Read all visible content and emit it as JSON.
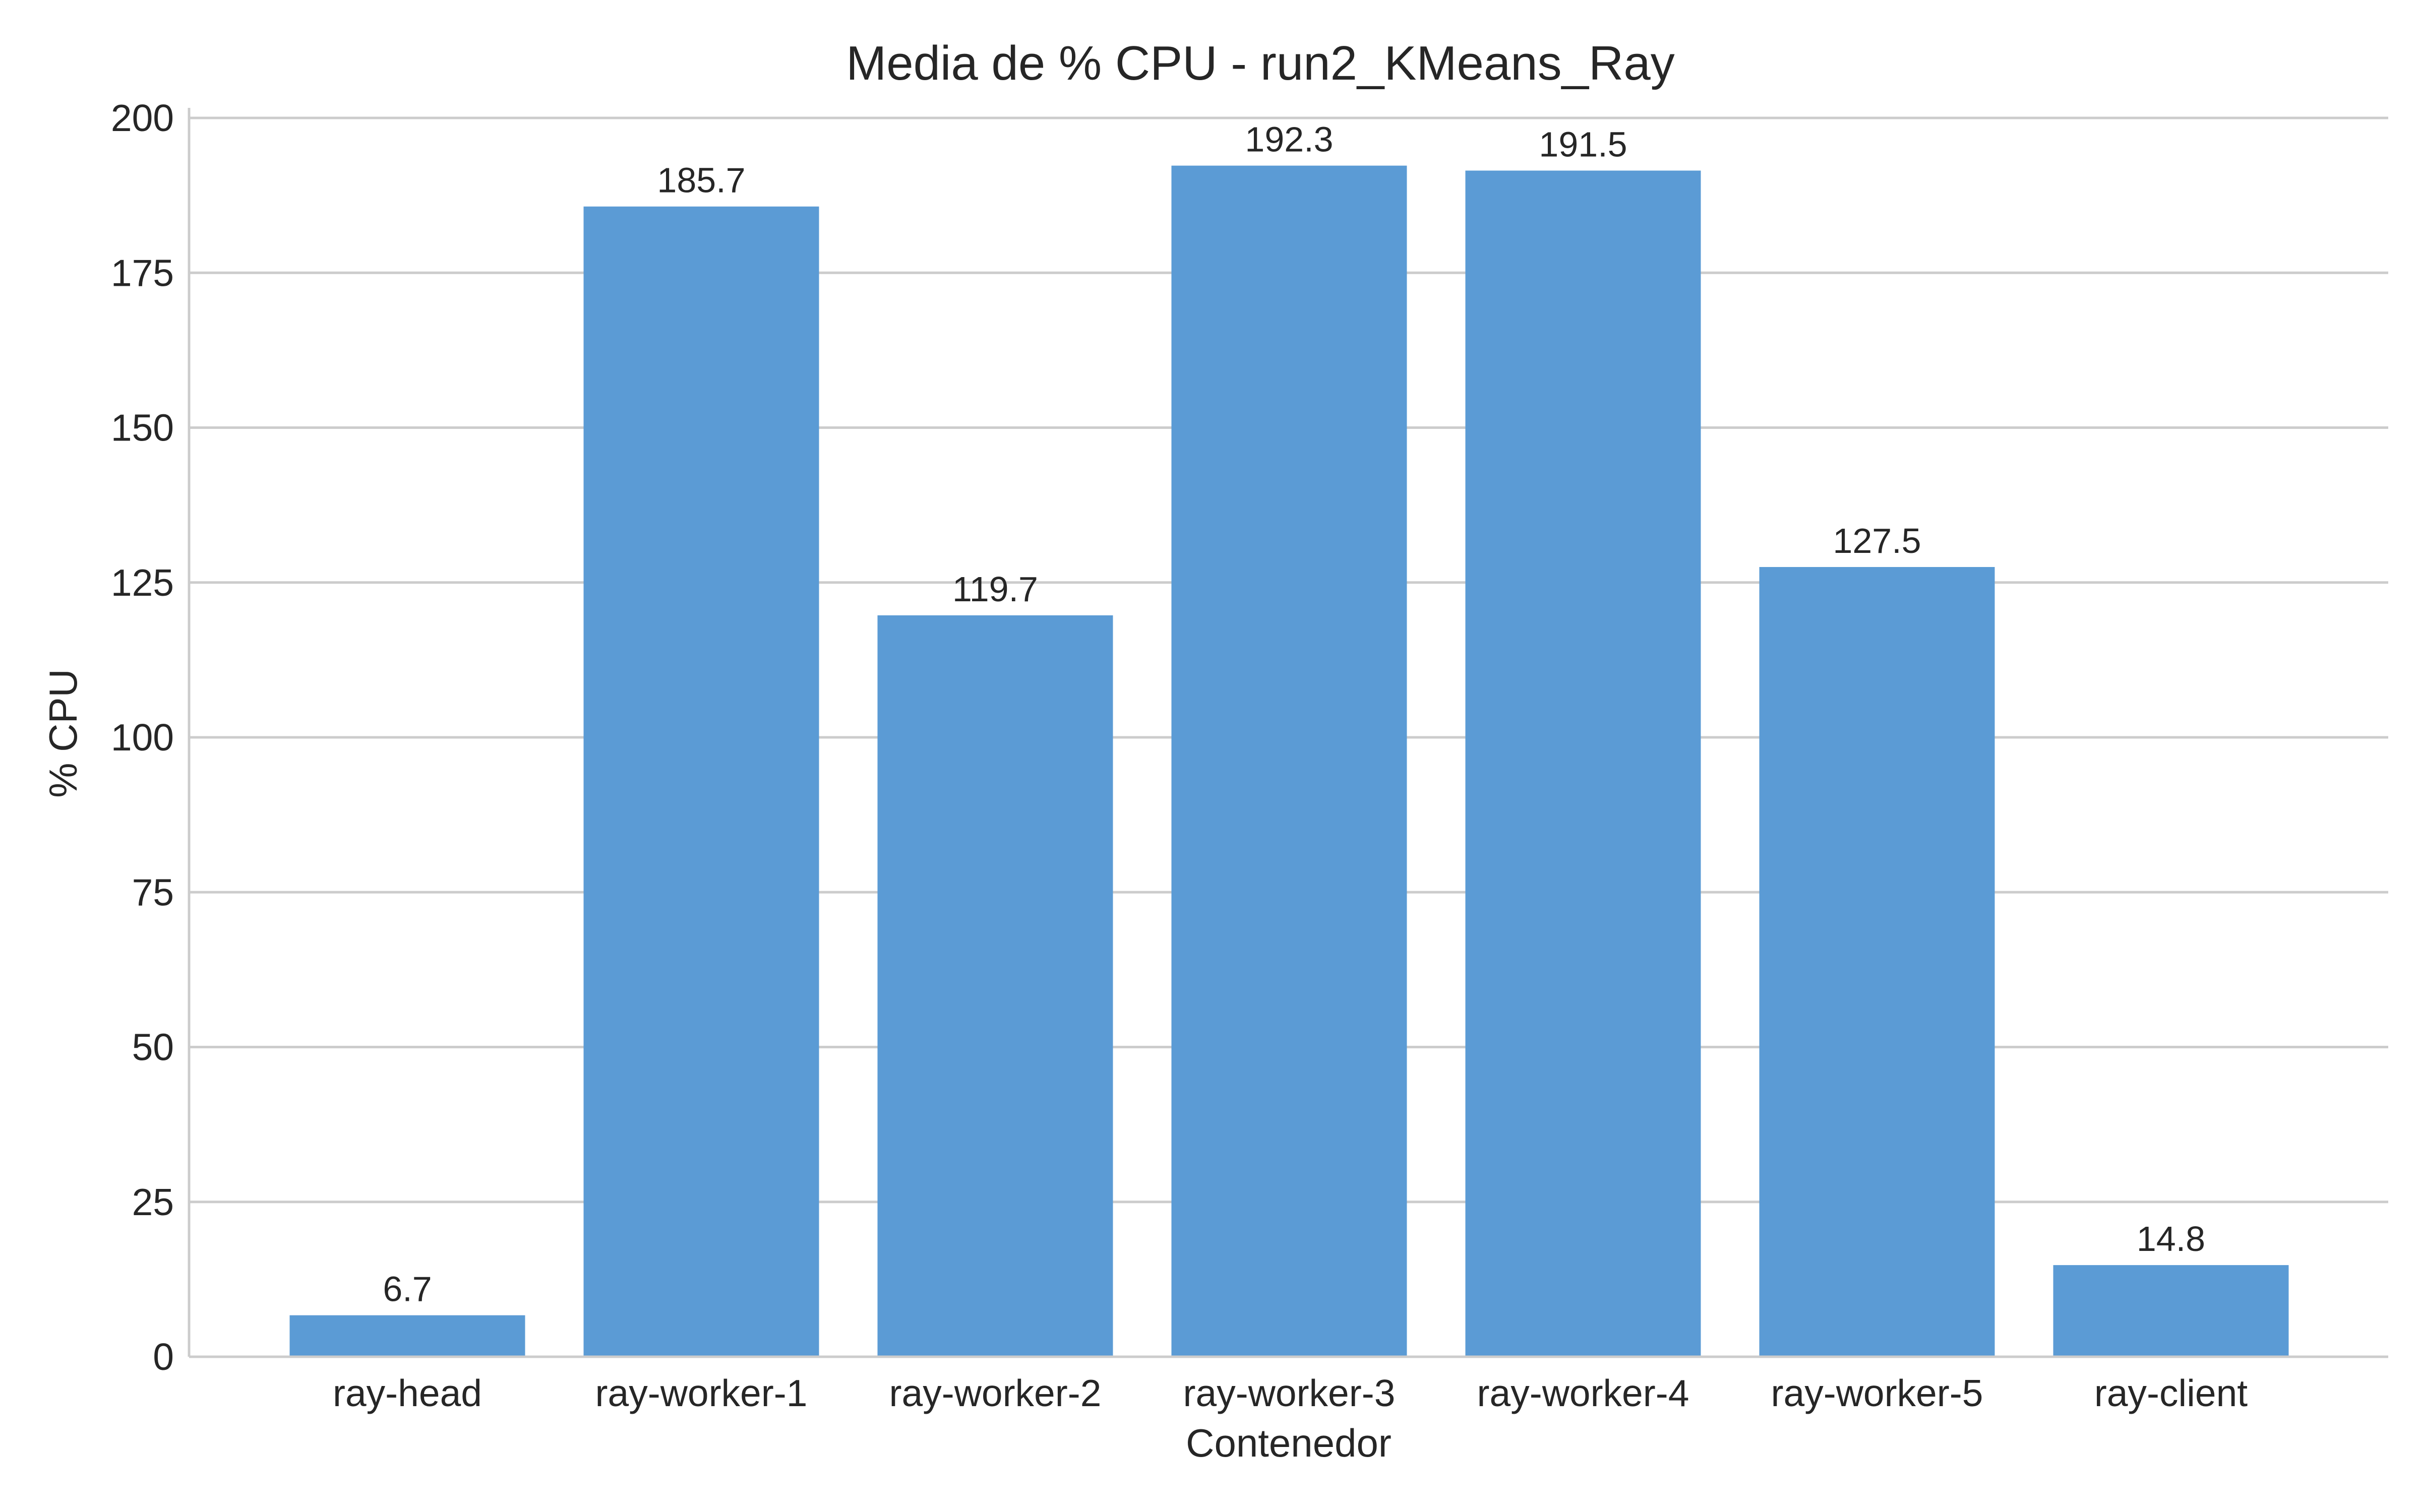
{
  "chart_data": {
    "type": "bar",
    "title": "Media de % CPU - run2_KMeans_Ray",
    "xlabel": "Contenedor",
    "ylabel": "% CPU",
    "categories": [
      "ray-head",
      "ray-worker-1",
      "ray-worker-2",
      "ray-worker-3",
      "ray-worker-4",
      "ray-worker-5",
      "ray-client"
    ],
    "values": [
      6.7,
      185.7,
      119.7,
      192.3,
      191.5,
      127.5,
      14.8
    ],
    "data_labels": [
      "6.7",
      "185.7",
      "119.7",
      "192.3",
      "191.5",
      "127.5",
      "14.8"
    ],
    "ylim": [
      0,
      200
    ],
    "yticks": [
      0,
      25,
      50,
      75,
      100,
      125,
      150,
      175,
      200
    ],
    "grid": "horizontal",
    "bar_color": "#5b9bd5"
  }
}
